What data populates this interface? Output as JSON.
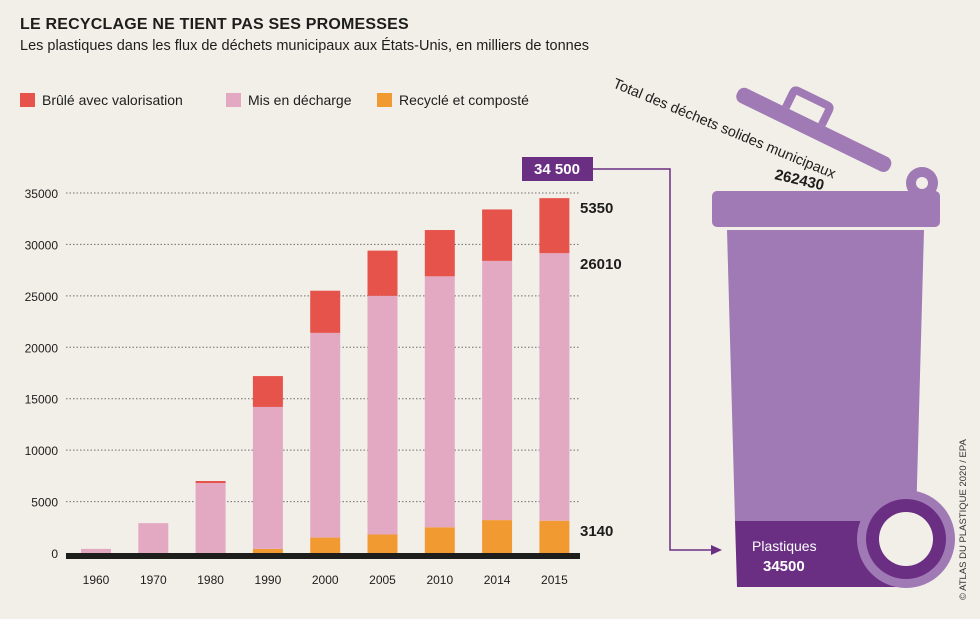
{
  "title": "LE RECYCLAGE NE TIENT PAS SES PROMESSES",
  "subtitle": "Les plastiques dans les flux de déchets municipaux aux États-Unis, en milliers de tonnes",
  "legend": [
    {
      "label": "Brûlé avec valorisation",
      "color": "#e5534b"
    },
    {
      "label": "Mis en décharge",
      "color": "#e4a9c2"
    },
    {
      "label": "Recyclé et composté",
      "color": "#f29a32"
    }
  ],
  "end_labels": {
    "burned": "5350",
    "landfill": "26010",
    "recycled": "3140"
  },
  "callout": {
    "value": "34 500"
  },
  "bin": {
    "lid_text": "Total des déchets solides municipaux",
    "total": "262430",
    "plastics_label": "Plastiques",
    "plastics_value": "34500",
    "body_color": "#a07ab4",
    "plastics_color": "#6a2e83"
  },
  "credit": "© ATLAS DU PLASTIQUE 2020 / EPA",
  "chart_data": {
    "type": "bar",
    "stacked": true,
    "categories": [
      "1960",
      "1970",
      "1980",
      "1990",
      "2000",
      "2005",
      "2010",
      "2014",
      "2015"
    ],
    "series": [
      {
        "name": "Recyclé et composté",
        "color": "#f29a32",
        "values": [
          0,
          0,
          0,
          400,
          1500,
          1800,
          2500,
          3200,
          3140
        ]
      },
      {
        "name": "Mis en décharge",
        "color": "#e4a9c2",
        "values": [
          400,
          2900,
          6800,
          13800,
          19900,
          23200,
          24400,
          25200,
          26010
        ]
      },
      {
        "name": "Brûlé avec valorisation",
        "color": "#e5534b",
        "values": [
          0,
          0,
          200,
          3000,
          4100,
          4400,
          4500,
          5000,
          5350
        ]
      }
    ],
    "ylim": [
      0,
      35000
    ],
    "yticks": [
      "0",
      "5000",
      "10000",
      "15000",
      "20000",
      "25000",
      "30000",
      "35000"
    ],
    "grid": true
  }
}
